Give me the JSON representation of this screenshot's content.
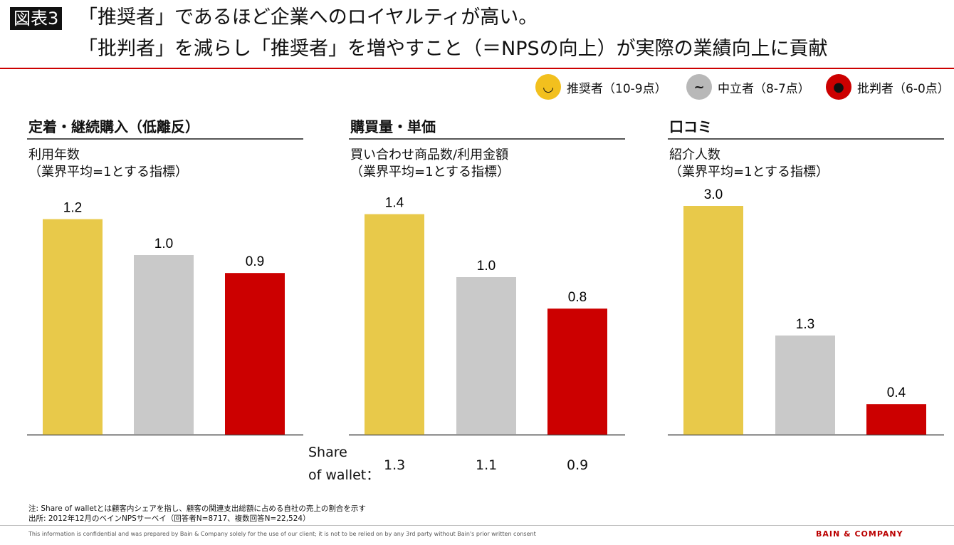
{
  "header": {
    "badge": "図表3",
    "title_line1": "「推奨者」であるほど企業へのロイヤルティが高い。",
    "title_line2": "「批判者」を減らし「推奨者」を増やすこと（＝NPSの向上）が実際の業績向上に貢献"
  },
  "legend": [
    {
      "label": "推奨者（10-9点）",
      "color": "#f2c01e",
      "icon": "smiley-happy-icon"
    },
    {
      "label": "中立者（8-7点）",
      "color": "#b8b8b8",
      "icon": "smiley-neutral-icon"
    },
    {
      "label": "批判者（6-0点）",
      "color": "#cc0000",
      "icon": "smiley-angry-icon"
    }
  ],
  "colors": {
    "promoter": "#e8c94a",
    "passive": "#c9c9c9",
    "detractor": "#cc0000",
    "accent": "#cc0000"
  },
  "chart_data": [
    {
      "type": "bar",
      "title": "定着・継続購入（低離反）",
      "ylabel": "利用年数\n（業界平均=1とする指標）",
      "categories": [
        "推奨者",
        "中立者",
        "批判者"
      ],
      "values": [
        1.2,
        1.0,
        0.9
      ],
      "labels": [
        "1.2",
        "1.0",
        "0.9"
      ]
    },
    {
      "type": "bar",
      "title": "購買量・単価",
      "ylabel": "買い合わせ商品数/利用金額\n（業界平均=1とする指標）",
      "categories": [
        "推奨者",
        "中立者",
        "批判者"
      ],
      "values": [
        1.4,
        1.0,
        0.8
      ],
      "labels": [
        "1.4",
        "1.0",
        "0.8"
      ]
    },
    {
      "type": "bar",
      "title": "口コミ",
      "ylabel": "紹介人数\n（業界平均=1とする指標）",
      "categories": [
        "推奨者",
        "中立者",
        "批判者"
      ],
      "values": [
        3.0,
        1.3,
        0.4
      ],
      "labels": [
        "3.0",
        "1.3",
        "0.4"
      ]
    }
  ],
  "share_of_wallet": {
    "label_line1": "Share",
    "label_line2": "of wallet：",
    "values": [
      "1.3",
      "1.1",
      "0.9"
    ]
  },
  "notes": {
    "note": "注:  Share of walletとは顧客内シェアを指し、顧客の関連支出総額に占める自社の売上の割合を示す",
    "source": "出所:  2012年12月のベインNPSサーベイ（回答者N=8717、複数回答N=22,524）"
  },
  "footer": {
    "confidential": "This information is confidential and was prepared by Bain & Company solely for the use of our client; it is not to be relied on by any 3rd party without Bain's prior written consent",
    "logo": "BAIN & COMPANY"
  }
}
